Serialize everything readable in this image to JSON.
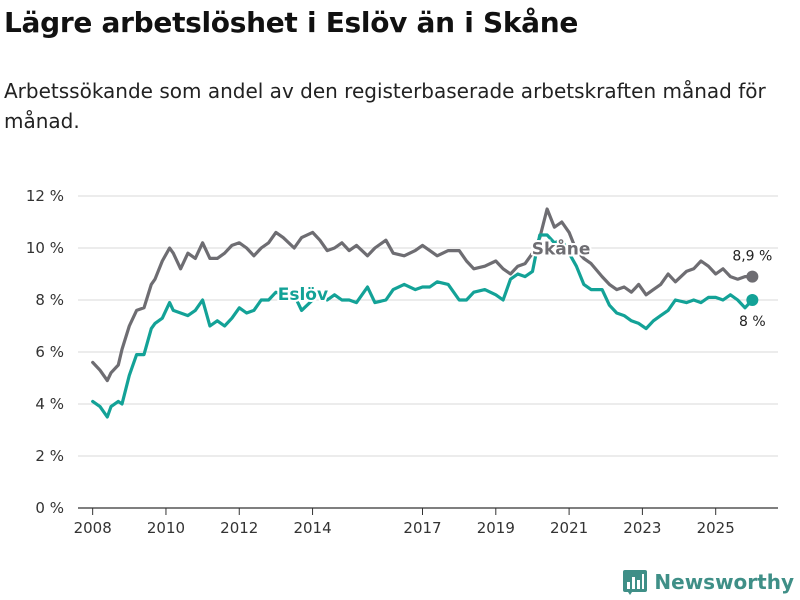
{
  "title": "Lägre arbetslöshet i Eslöv än i Skåne",
  "subtitle": "Arbetssökande som andel av den registerbaserade arbetskraften månad för månad.",
  "brand": {
    "name": "Newsworthy",
    "icon": "bar-chart-logo-icon"
  },
  "colors": {
    "skane": "#6e6d72",
    "eslov": "#13a297",
    "grid": "#d9d9d9",
    "axis": "#333333",
    "brand": "#3f8f87"
  },
  "chart_data": {
    "type": "line",
    "title": "Lägre arbetslöshet i Eslöv än i Skåne",
    "xlabel": "",
    "ylabel": "",
    "xlim": [
      2007.6,
      2026.7
    ],
    "ylim": [
      0,
      12
    ],
    "y_ticks": [
      0,
      2,
      4,
      6,
      8,
      10,
      12
    ],
    "y_tick_labels": [
      "0 %",
      "2 %",
      "4 %",
      "6 %",
      "8 %",
      "10 %",
      "12 %"
    ],
    "x_ticks": [
      2008,
      2010,
      2012,
      2014,
      2017,
      2019,
      2021,
      2023,
      2025
    ],
    "x_tick_labels": [
      "2008",
      "2010",
      "2012",
      "2014",
      "2017",
      "2019",
      "2021",
      "2023",
      "2025"
    ],
    "grid": true,
    "series": [
      {
        "name": "Skåne",
        "x": [
          2008.0,
          2008.2,
          2008.4,
          2008.5,
          2008.7,
          2008.8,
          2009.0,
          2009.2,
          2009.4,
          2009.6,
          2009.7,
          2009.9,
          2010.1,
          2010.2,
          2010.4,
          2010.6,
          2010.8,
          2011.0,
          2011.2,
          2011.4,
          2011.6,
          2011.8,
          2012.0,
          2012.2,
          2012.4,
          2012.6,
          2012.8,
          2013.0,
          2013.2,
          2013.5,
          2013.7,
          2014.0,
          2014.2,
          2014.4,
          2014.6,
          2014.8,
          2015.0,
          2015.2,
          2015.5,
          2015.7,
          2016.0,
          2016.2,
          2016.5,
          2016.8,
          2017.0,
          2017.2,
          2017.4,
          2017.7,
          2018.0,
          2018.2,
          2018.4,
          2018.7,
          2019.0,
          2019.2,
          2019.4,
          2019.6,
          2019.8,
          2020.0,
          2020.2,
          2020.4,
          2020.6,
          2020.8,
          2021.0,
          2021.2,
          2021.4,
          2021.6,
          2021.9,
          2022.1,
          2022.3,
          2022.5,
          2022.7,
          2022.9,
          2023.1,
          2023.3,
          2023.5,
          2023.7,
          2023.9,
          2024.2,
          2024.4,
          2024.6,
          2024.8,
          2025.0,
          2025.2,
          2025.4,
          2025.6,
          2025.8,
          2026.0
        ],
        "values": [
          5.6,
          5.3,
          4.9,
          5.2,
          5.5,
          6.1,
          7.0,
          7.6,
          7.7,
          8.6,
          8.8,
          9.5,
          10.0,
          9.8,
          9.2,
          9.8,
          9.6,
          10.2,
          9.6,
          9.6,
          9.8,
          10.1,
          10.2,
          10.0,
          9.7,
          10.0,
          10.2,
          10.6,
          10.4,
          10.0,
          10.4,
          10.6,
          10.3,
          9.9,
          10.0,
          10.2,
          9.9,
          10.1,
          9.7,
          10.0,
          10.3,
          9.8,
          9.7,
          9.9,
          10.1,
          9.9,
          9.7,
          9.9,
          9.9,
          9.5,
          9.2,
          9.3,
          9.5,
          9.2,
          9.0,
          9.3,
          9.4,
          9.8,
          10.4,
          11.5,
          10.8,
          11.0,
          10.6,
          9.9,
          9.6,
          9.4,
          8.9,
          8.6,
          8.4,
          8.5,
          8.3,
          8.6,
          8.2,
          8.4,
          8.6,
          9.0,
          8.7,
          9.1,
          9.2,
          9.5,
          9.3,
          9.0,
          9.2,
          8.9,
          8.8,
          8.9,
          8.9
        ],
        "label": "Skåne",
        "end_label": "8,9 %"
      },
      {
        "name": "Eslöv",
        "x": [
          2008.0,
          2008.2,
          2008.4,
          2008.5,
          2008.7,
          2008.8,
          2009.0,
          2009.2,
          2009.4,
          2009.6,
          2009.7,
          2009.9,
          2010.1,
          2010.2,
          2010.4,
          2010.6,
          2010.8,
          2011.0,
          2011.2,
          2011.4,
          2011.6,
          2011.8,
          2012.0,
          2012.2,
          2012.4,
          2012.6,
          2012.8,
          2013.0,
          2013.2,
          2013.5,
          2013.7,
          2014.0,
          2014.2,
          2014.4,
          2014.6,
          2014.8,
          2015.0,
          2015.2,
          2015.5,
          2015.7,
          2016.0,
          2016.2,
          2016.5,
          2016.8,
          2017.0,
          2017.2,
          2017.4,
          2017.7,
          2018.0,
          2018.2,
          2018.4,
          2018.7,
          2019.0,
          2019.2,
          2019.4,
          2019.6,
          2019.8,
          2020.0,
          2020.2,
          2020.4,
          2020.6,
          2020.8,
          2021.0,
          2021.2,
          2021.4,
          2021.6,
          2021.9,
          2022.1,
          2022.3,
          2022.5,
          2022.7,
          2022.9,
          2023.1,
          2023.3,
          2023.5,
          2023.7,
          2023.9,
          2024.2,
          2024.4,
          2024.6,
          2024.8,
          2025.0,
          2025.2,
          2025.4,
          2025.6,
          2025.8,
          2026.0
        ],
        "values": [
          4.1,
          3.9,
          3.5,
          3.9,
          4.1,
          4.0,
          5.1,
          5.9,
          5.9,
          6.9,
          7.1,
          7.3,
          7.9,
          7.6,
          7.5,
          7.4,
          7.6,
          8.0,
          7.0,
          7.2,
          7.0,
          7.3,
          7.7,
          7.5,
          7.6,
          8.0,
          8.0,
          8.3,
          8.2,
          8.2,
          7.6,
          8.0,
          8.3,
          8.0,
          8.2,
          8.0,
          8.0,
          7.9,
          8.5,
          7.9,
          8.0,
          8.4,
          8.6,
          8.4,
          8.5,
          8.5,
          8.7,
          8.6,
          8.0,
          8.0,
          8.3,
          8.4,
          8.2,
          8.0,
          8.8,
          9.0,
          8.9,
          9.1,
          10.5,
          10.5,
          10.2,
          10.3,
          9.8,
          9.3,
          8.6,
          8.4,
          8.4,
          7.8,
          7.5,
          7.4,
          7.2,
          7.1,
          6.9,
          7.2,
          7.4,
          7.6,
          8.0,
          7.9,
          8.0,
          7.9,
          8.1,
          8.1,
          8.0,
          8.2,
          8.0,
          7.7,
          8.0
        ],
        "label": "Eslöv",
        "end_label": "8 %"
      }
    ]
  }
}
